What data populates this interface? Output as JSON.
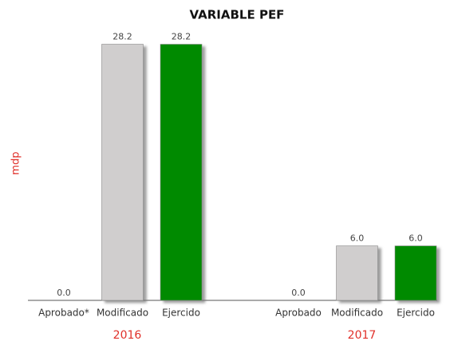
{
  "chart_data": {
    "type": "bar",
    "title": "VARIABLE PEF",
    "y_label": "mdp",
    "categories": [
      "Aprobado*",
      "Modificado",
      "Ejercido",
      "Aprobado",
      "Modificado",
      "Ejercido"
    ],
    "values": [
      0,
      28.2,
      28.2,
      0,
      6,
      6
    ],
    "value_labels": [
      "0.0",
      "28.2",
      "28.2",
      "0.0",
      "6.0",
      "6.0"
    ],
    "colors": [
      "#d0cece",
      "#d0cece",
      "#008a00",
      "#d0cece",
      "#d0cece",
      "#008a00"
    ],
    "groups": [
      "2016",
      "2017"
    ],
    "ylim": [
      0,
      30
    ]
  }
}
